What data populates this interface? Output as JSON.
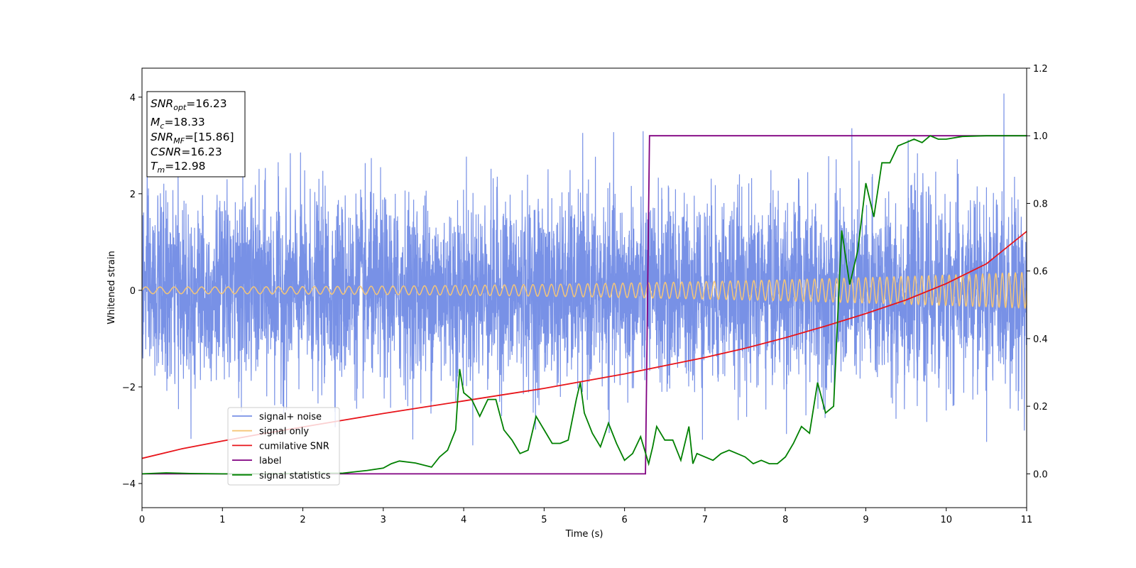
{
  "chart_data": {
    "type": "line",
    "title": "",
    "xlabel": "Time (s)",
    "ylabel": "Whitened strain",
    "y2label": "",
    "xlim": [
      0,
      11
    ],
    "ylim": [
      -4.5,
      4.6
    ],
    "y2lim": [
      -0.1,
      1.2
    ],
    "x_ticks": [
      0,
      1,
      2,
      3,
      4,
      5,
      6,
      7,
      8,
      9,
      10,
      11
    ],
    "y_ticks": [
      -4,
      -2,
      0,
      2,
      4
    ],
    "y2_ticks": [
      "0.0",
      "0.2",
      "0.4",
      "0.6",
      "0.8",
      "1.0",
      "1.2"
    ],
    "legend_position": "lower-left",
    "series": [
      {
        "name": "signal+ noise",
        "axis": "left",
        "color": "#7891e6",
        "description_values": {
          "approx_std": 0.95,
          "approx_range": [
            -4.1,
            4.2
          ],
          "sample_rate_hz": 450
        }
      },
      {
        "name": "signal only",
        "axis": "left",
        "color": "#f5c678",
        "amplitude_start": 0.07,
        "amplitude_end": 0.37,
        "freq_start_hz": 5.5,
        "freq_end_hz": 12.5
      },
      {
        "name": "cumilative SNR",
        "axis": "left",
        "color": "#e8141a",
        "x": [
          0,
          0.5,
          1,
          1.5,
          2,
          2.5,
          3,
          3.5,
          4,
          4.5,
          5,
          5.5,
          6,
          6.5,
          7,
          7.5,
          8,
          8.5,
          9,
          9.5,
          10,
          10.5,
          11
        ],
        "y": [
          -3.48,
          -3.28,
          -3.12,
          -2.97,
          -2.83,
          -2.69,
          -2.55,
          -2.42,
          -2.29,
          -2.16,
          -2.03,
          -1.88,
          -1.73,
          -1.56,
          -1.39,
          -1.2,
          -0.98,
          -0.74,
          -0.48,
          -0.2,
          0.14,
          0.55,
          1.22
        ]
      },
      {
        "name": "label",
        "axis": "right",
        "color": "#800080",
        "x": [
          0,
          6.26,
          6.31,
          11
        ],
        "y": [
          0,
          0,
          1,
          1
        ]
      },
      {
        "name": "signal statistics",
        "axis": "right",
        "color": "#008000",
        "x": [
          0,
          0.3,
          0.6,
          1.0,
          1.5,
          2.0,
          2.5,
          2.8,
          3.0,
          3.1,
          3.2,
          3.4,
          3.6,
          3.7,
          3.8,
          3.9,
          3.95,
          4.0,
          4.1,
          4.2,
          4.3,
          4.4,
          4.5,
          4.6,
          4.7,
          4.8,
          4.9,
          5.0,
          5.1,
          5.2,
          5.3,
          5.4,
          5.45,
          5.5,
          5.6,
          5.7,
          5.8,
          5.9,
          6.0,
          6.1,
          6.2,
          6.25,
          6.3,
          6.35,
          6.4,
          6.5,
          6.6,
          6.7,
          6.8,
          6.85,
          6.9,
          7.0,
          7.1,
          7.2,
          7.3,
          7.4,
          7.5,
          7.6,
          7.7,
          7.8,
          7.9,
          8.0,
          8.1,
          8.2,
          8.3,
          8.4,
          8.5,
          8.6,
          8.7,
          8.8,
          8.9,
          9.0,
          9.1,
          9.2,
          9.3,
          9.4,
          9.5,
          9.6,
          9.7,
          9.8,
          9.9,
          10.0,
          10.2,
          10.5,
          11.0
        ],
        "y": [
          0.0,
          0.003,
          0.001,
          0.0,
          0.0,
          0.001,
          0.002,
          0.01,
          0.017,
          0.03,
          0.038,
          0.032,
          0.02,
          0.05,
          0.07,
          0.13,
          0.31,
          0.24,
          0.22,
          0.17,
          0.22,
          0.22,
          0.13,
          0.1,
          0.06,
          0.07,
          0.17,
          0.13,
          0.09,
          0.09,
          0.1,
          0.22,
          0.27,
          0.18,
          0.12,
          0.08,
          0.15,
          0.09,
          0.04,
          0.06,
          0.11,
          0.07,
          0.03,
          0.08,
          0.14,
          0.1,
          0.1,
          0.04,
          0.14,
          0.03,
          0.06,
          0.05,
          0.04,
          0.06,
          0.07,
          0.06,
          0.05,
          0.03,
          0.04,
          0.03,
          0.03,
          0.05,
          0.09,
          0.14,
          0.12,
          0.27,
          0.18,
          0.2,
          0.72,
          0.56,
          0.66,
          0.86,
          0.76,
          0.92,
          0.92,
          0.97,
          0.98,
          0.99,
          0.98,
          1.0,
          0.99,
          0.99,
          0.998,
          1.0,
          1.0
        ]
      }
    ]
  },
  "stats_box": {
    "snr_opt_label": "SNR",
    "snr_opt_sub": "opt",
    "snr_opt_value": "=16.23",
    "mc_label": "M",
    "mc_sub": "c",
    "mc_value": "=18.33",
    "snr_mf_label": "SNR",
    "snr_mf_sub": "MF",
    "snr_mf_value": "=[15.86]",
    "csnr_label": "CSNR",
    "csnr_value": "=16.23",
    "tm_label": "T",
    "tm_sub": "m",
    "tm_value": "=12.98"
  }
}
